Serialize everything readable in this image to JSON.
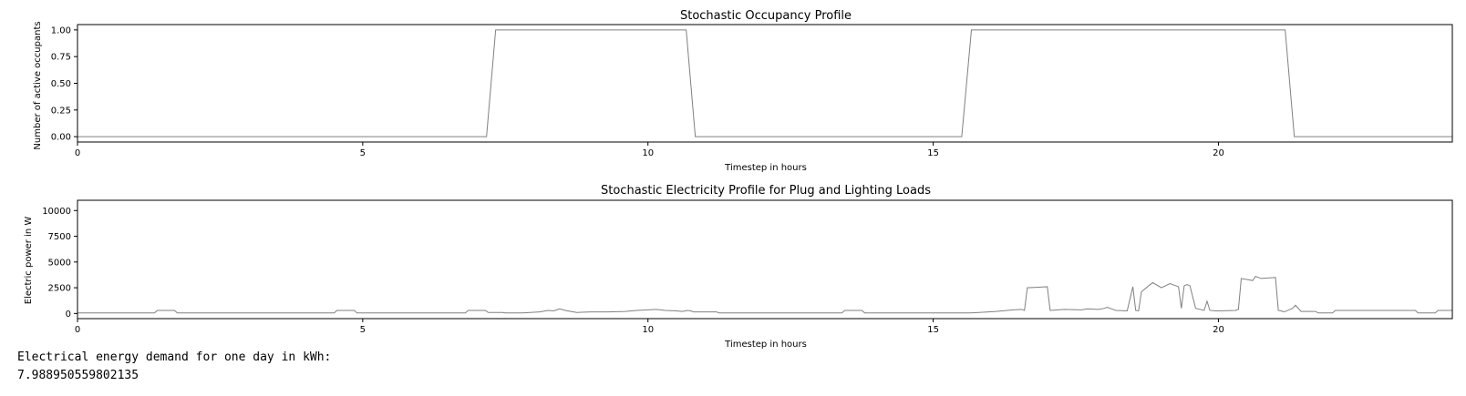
{
  "chart_data": [
    {
      "type": "line",
      "title": "Stochastic Occupancy Profile",
      "xlabel": "Timestep in hours",
      "ylabel": "Number of active occupants",
      "xlim": [
        0,
        24.1
      ],
      "ylim": [
        -0.05,
        1.05
      ],
      "xticks": [
        0,
        5,
        10,
        15,
        20
      ],
      "yticks": [
        0.0,
        0.25,
        0.5,
        0.75,
        1.0
      ],
      "ytick_labels": [
        "0.00",
        "0.25",
        "0.50",
        "0.75",
        "1.00"
      ],
      "grid": false,
      "series": [
        {
          "color": "#808080",
          "x": [
            0,
            7.17,
            7.33,
            10.67,
            10.83,
            15.5,
            15.67,
            21.17,
            21.33,
            24.1
          ],
          "y": [
            0,
            0,
            1,
            1,
            0,
            0,
            1,
            1,
            0,
            0
          ]
        }
      ]
    },
    {
      "type": "line",
      "title": "Stochastic Electricity Profile for Plug and Lighting Loads",
      "xlabel": "Timestep in hours",
      "ylabel": "Electric power in W",
      "xlim": [
        0,
        24.1
      ],
      "ylim": [
        -500,
        11000
      ],
      "xticks": [
        0,
        5,
        10,
        15,
        20
      ],
      "yticks": [
        0,
        2500,
        5000,
        7500,
        10000
      ],
      "ytick_labels": [
        "0",
        "2500",
        "5000",
        "7500",
        "10000"
      ],
      "grid": false,
      "series": [
        {
          "color": "#808080",
          "x": [
            0,
            1.35,
            1.4,
            1.7,
            1.75,
            4.5,
            4.55,
            4.85,
            4.9,
            6.8,
            6.85,
            7.15,
            7.2,
            7.45,
            7.5,
            7.8,
            8.1,
            8.25,
            8.35,
            8.45,
            8.55,
            8.65,
            8.75,
            9.0,
            9.3,
            9.6,
            9.8,
            10.0,
            10.15,
            10.3,
            10.5,
            10.6,
            10.7,
            10.75,
            10.8,
            11.2,
            11.25,
            13.4,
            13.45,
            13.75,
            13.8,
            15.65,
            15.8,
            16.1,
            16.3,
            16.4,
            16.55,
            16.6,
            16.65,
            17.0,
            17.05,
            17.3,
            17.6,
            17.7,
            17.9,
            18.0,
            18.05,
            18.15,
            18.2,
            18.4,
            18.5,
            18.55,
            18.6,
            18.65,
            18.8,
            18.85,
            19.0,
            19.15,
            19.25,
            19.3,
            19.35,
            19.4,
            19.45,
            19.5,
            19.6,
            19.75,
            19.8,
            19.85,
            19.95,
            20.0,
            20.3,
            20.35,
            20.4,
            20.6,
            20.65,
            20.75,
            21.0,
            21.05,
            21.1,
            21.15,
            21.3,
            21.35,
            21.45,
            21.7,
            21.75,
            22.0,
            22.05,
            23.45,
            23.5,
            23.8,
            23.85,
            24.1
          ],
          "y": [
            50,
            50,
            300,
            300,
            50,
            50,
            300,
            300,
            50,
            50,
            300,
            300,
            100,
            100,
            50,
            50,
            150,
            300,
            250,
            450,
            300,
            200,
            100,
            150,
            150,
            200,
            300,
            350,
            400,
            300,
            250,
            200,
            300,
            250,
            150,
            150,
            50,
            50,
            300,
            300,
            50,
            50,
            100,
            200,
            300,
            350,
            400,
            300,
            2500,
            2600,
            300,
            400,
            350,
            450,
            400,
            500,
            600,
            400,
            300,
            250,
            2600,
            300,
            250,
            2100,
            2800,
            3000,
            2500,
            2900,
            2700,
            2600,
            500,
            2700,
            2800,
            2700,
            500,
            300,
            1200,
            300,
            250,
            250,
            300,
            400,
            3400,
            3200,
            3600,
            3400,
            3500,
            300,
            250,
            150,
            500,
            800,
            200,
            200,
            50,
            50,
            300,
            300,
            50,
            50,
            300,
            300
          ]
        }
      ]
    }
  ],
  "output": {
    "line1": "Electrical energy demand for one day in kWh:",
    "line2": "7.988950559802135"
  }
}
